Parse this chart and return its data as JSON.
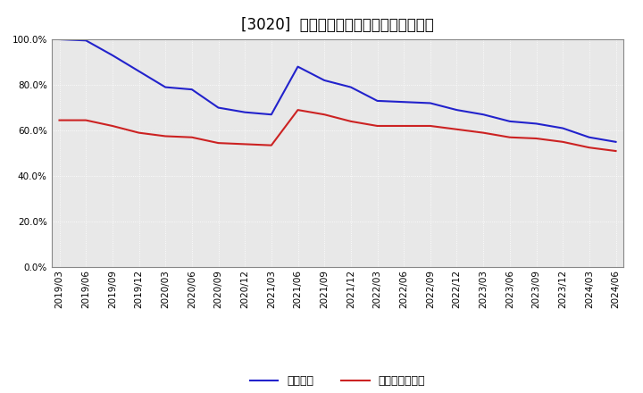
{
  "title": "[3020]  固定比率、固定長期適合率の推移",
  "x_labels": [
    "2019/03",
    "2019/06",
    "2019/09",
    "2019/12",
    "2020/03",
    "2020/06",
    "2020/09",
    "2020/12",
    "2021/03",
    "2021/06",
    "2021/09",
    "2021/12",
    "2022/03",
    "2022/06",
    "2022/09",
    "2022/12",
    "2023/03",
    "2023/06",
    "2023/09",
    "2023/12",
    "2024/03",
    "2024/06"
  ],
  "fixed_ratio": [
    100.0,
    99.5,
    93.0,
    86.0,
    79.0,
    78.0,
    70.0,
    68.0,
    67.0,
    88.0,
    82.0,
    79.0,
    73.0,
    72.5,
    72.0,
    69.0,
    67.0,
    64.0,
    63.0,
    61.0,
    57.0,
    55.0
  ],
  "fixed_long_ratio": [
    64.5,
    64.5,
    62.0,
    59.0,
    57.5,
    57.0,
    54.5,
    54.0,
    53.5,
    69.0,
    67.0,
    64.0,
    62.0,
    62.0,
    62.0,
    60.5,
    59.0,
    57.0,
    56.5,
    55.0,
    52.5,
    51.0
  ],
  "line_color_blue": "#2222cc",
  "line_color_red": "#cc2222",
  "background_color": "#ffffff",
  "plot_bg_color": "#e8e8e8",
  "grid_color": "#ffffff",
  "border_color": "#888888",
  "ylim": [
    0,
    100
  ],
  "yticks": [
    0,
    20,
    40,
    60,
    80,
    100
  ],
  "legend_fixed": "固定比率",
  "legend_fixed_long": "固定長期適合率",
  "title_fontsize": 12,
  "axis_fontsize": 7.5,
  "legend_fontsize": 9,
  "linewidth": 1.5
}
